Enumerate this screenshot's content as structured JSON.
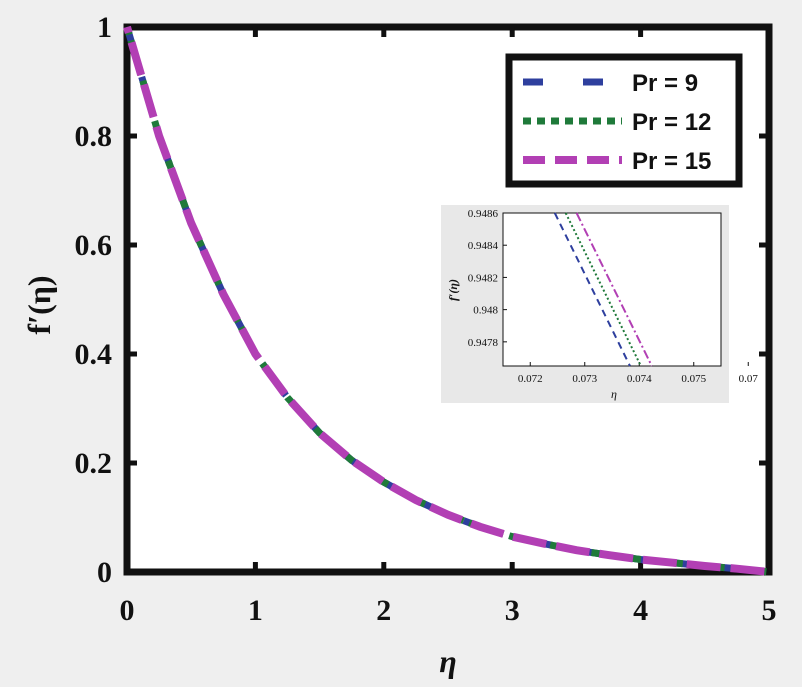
{
  "chart_data": [
    {
      "type": "line",
      "xlabel": "η",
      "ylabel": "f′(η)",
      "xlim": [
        0,
        5
      ],
      "ylim": [
        0,
        1
      ],
      "xticks": [
        "0",
        "1",
        "2",
        "3",
        "4",
        "5"
      ],
      "yticks": [
        "0",
        "0.2",
        "0.4",
        "0.6",
        "0.8",
        "1"
      ],
      "x": [
        0,
        0.25,
        0.5,
        0.75,
        1,
        1.25,
        1.5,
        1.75,
        2,
        2.25,
        2.5,
        2.75,
        3,
        3.25,
        3.5,
        3.75,
        4,
        4.25,
        4.5,
        4.75,
        5
      ],
      "series": [
        {
          "name": "Pr = 9",
          "color": "#2e3f9e",
          "style": "dashed",
          "values": [
            1.0,
            0.8,
            0.64,
            0.51,
            0.4,
            0.32,
            0.255,
            0.205,
            0.165,
            0.132,
            0.105,
            0.083,
            0.065,
            0.052,
            0.04,
            0.031,
            0.023,
            0.017,
            0.011,
            0.006,
            0.0
          ]
        },
        {
          "name": "Pr = 12",
          "color": "#1f7a3a",
          "style": "dotted",
          "values": [
            1.0,
            0.8,
            0.64,
            0.51,
            0.4,
            0.32,
            0.255,
            0.205,
            0.165,
            0.132,
            0.105,
            0.083,
            0.065,
            0.052,
            0.04,
            0.031,
            0.023,
            0.017,
            0.011,
            0.006,
            0.0
          ]
        },
        {
          "name": "Pr = 15",
          "color": "#b23fb4",
          "style": "dashdot",
          "values": [
            1.0,
            0.8,
            0.64,
            0.51,
            0.4,
            0.32,
            0.255,
            0.205,
            0.165,
            0.132,
            0.105,
            0.083,
            0.065,
            0.052,
            0.04,
            0.031,
            0.023,
            0.017,
            0.011,
            0.006,
            0.0
          ]
        }
      ],
      "legend": "top-right",
      "grid": false
    },
    {
      "type": "line",
      "xlabel": "η",
      "ylabel": "f′(η)",
      "xlim": [
        0.0715,
        0.0755
      ],
      "ylim": [
        0.94765,
        0.9486
      ],
      "xticks": [
        "0.072",
        "0.073",
        "0.074",
        "0.075",
        "0.07"
      ],
      "yticks": [
        "0.9478",
        "0.948",
        "0.9482",
        "0.9484",
        "0.9486"
      ],
      "series": [
        {
          "name": "Pr = 9",
          "color": "#2e3f9e",
          "style": "dashed",
          "points": [
            [
              0.07245,
              0.9486
            ],
            [
              0.07383,
              0.94765
            ]
          ]
        },
        {
          "name": "Pr = 12",
          "color": "#1f7a3a",
          "style": "dotted",
          "points": [
            [
              0.07265,
              0.9486
            ],
            [
              0.07403,
              0.94765
            ]
          ]
        },
        {
          "name": "Pr = 15",
          "color": "#b23fb4",
          "style": "dashdot",
          "points": [
            [
              0.07285,
              0.9486
            ],
            [
              0.07423,
              0.94765
            ]
          ]
        }
      ],
      "grid": false
    }
  ]
}
